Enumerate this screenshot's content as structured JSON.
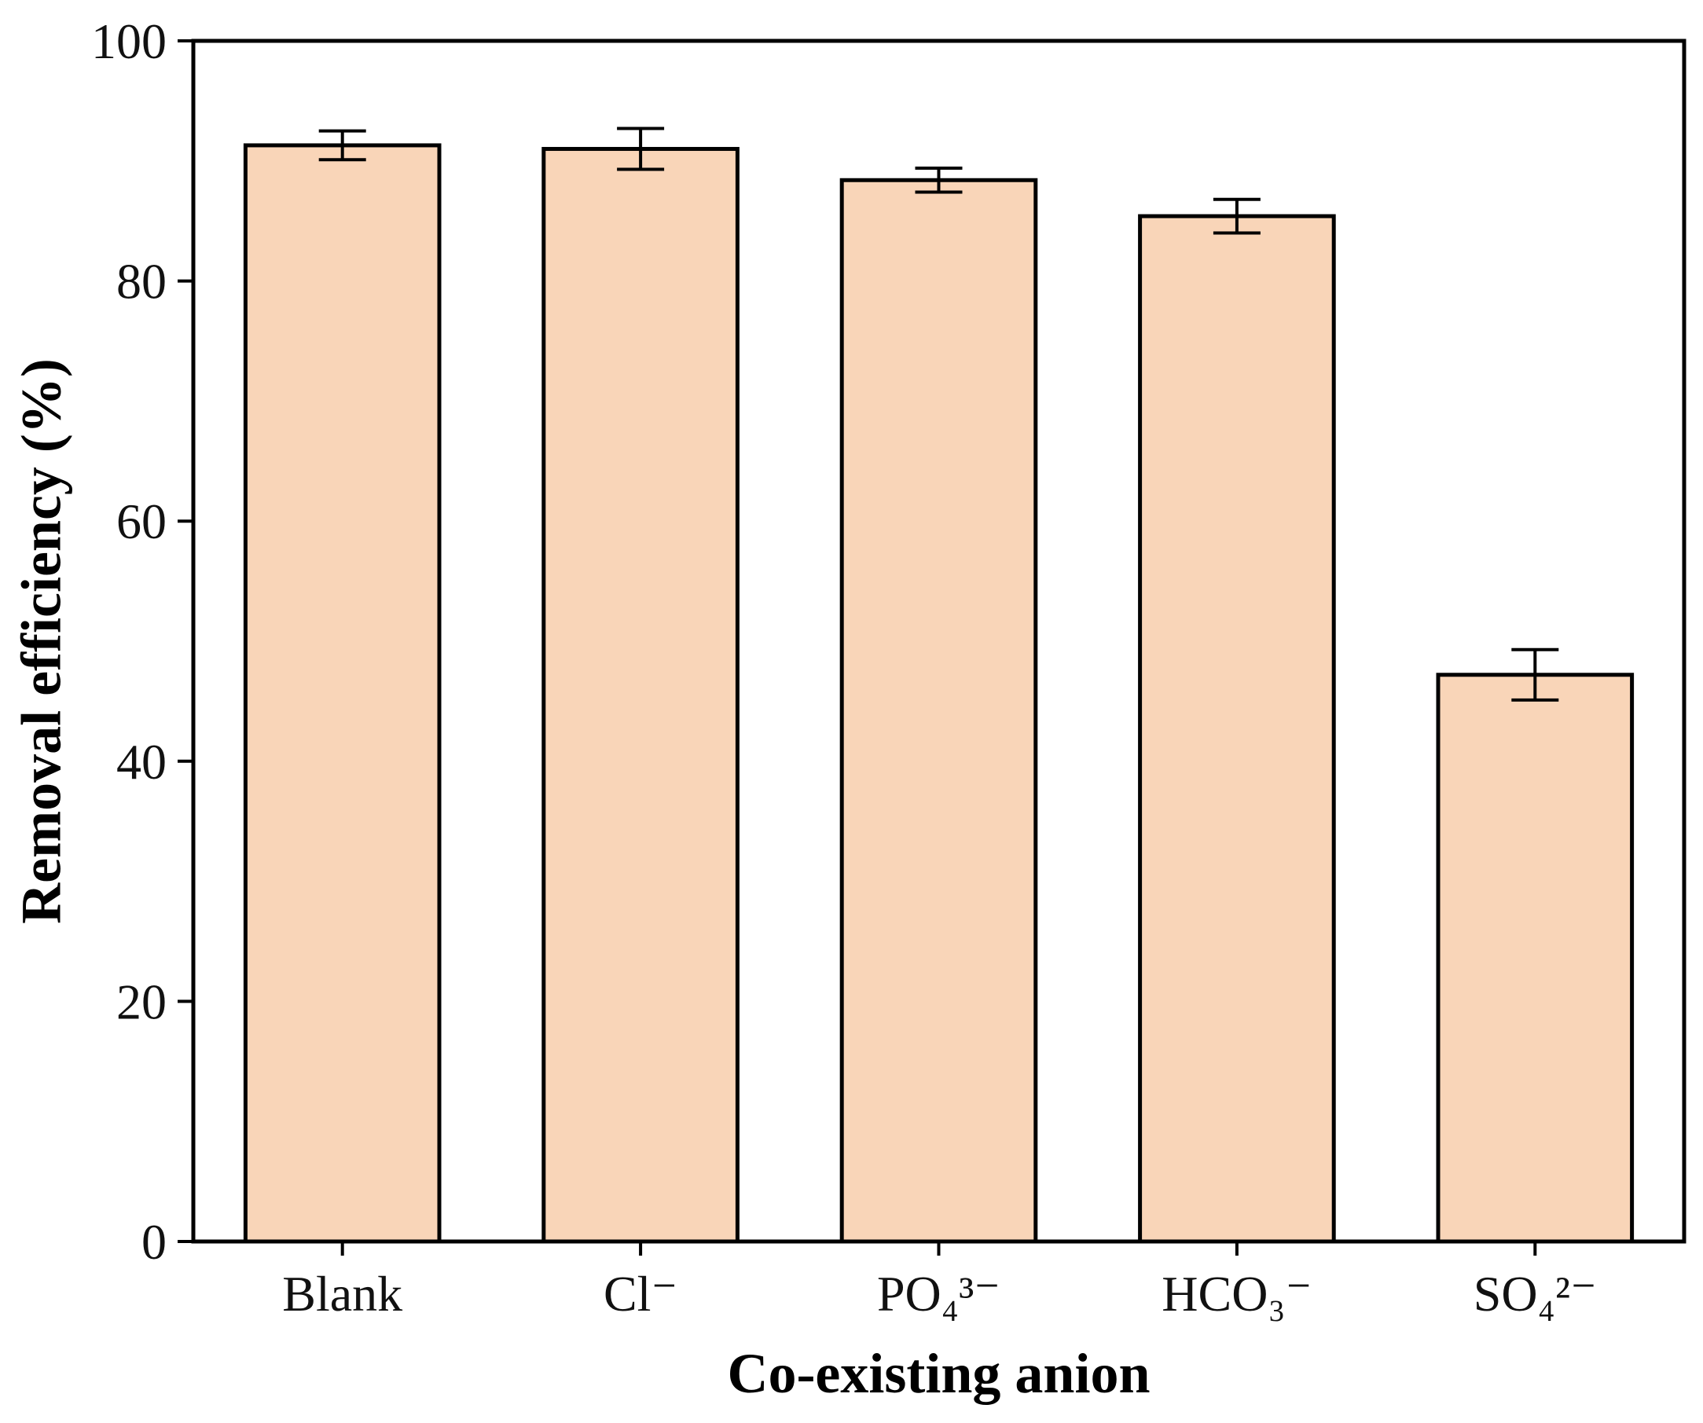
{
  "chart_data": {
    "type": "bar",
    "title": "",
    "xlabel": "Co-existing anion",
    "ylabel": "Removal efficiency (%)",
    "categories": [
      "Blank",
      "Cl⁻",
      "PO₄³⁻",
      "HCO₃⁻",
      "SO₄²⁻"
    ],
    "values": [
      91.3,
      91.0,
      88.4,
      85.4,
      47.2
    ],
    "errors": [
      1.2,
      1.7,
      1.0,
      1.4,
      2.1
    ],
    "ylim": [
      0,
      100
    ],
    "yticks": [
      0,
      20,
      40,
      60,
      80,
      100
    ],
    "grid": false,
    "bar_color": "#f9d5b8",
    "edge_color": "#000000"
  }
}
